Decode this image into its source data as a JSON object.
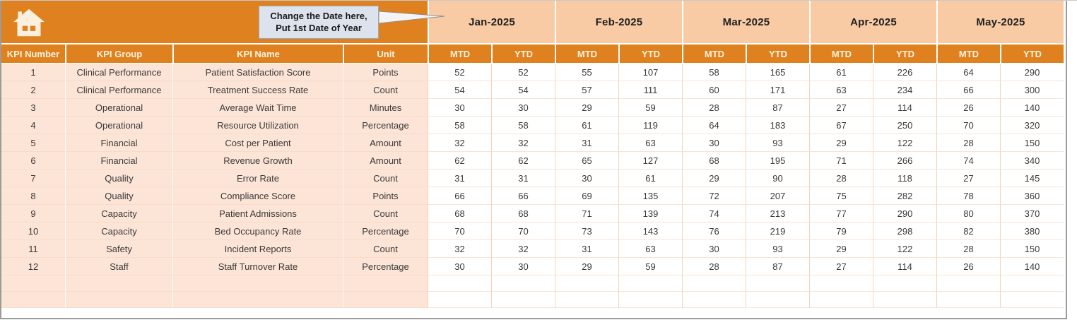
{
  "banner": {
    "callout": {
      "line1": "Change the Date here,",
      "line2": "Put 1st Date of Year"
    }
  },
  "months": [
    "Jan-2025",
    "Feb-2025",
    "Mar-2025",
    "Apr-2025",
    "May-2025"
  ],
  "subheaders": [
    "MTD",
    "YTD"
  ],
  "columns": [
    "KPI Number",
    "KPI Group",
    "KPI Name",
    "Unit"
  ],
  "rows": [
    {
      "number": "1",
      "group": "Clinical Performance",
      "name": "Patient Satisfaction Score",
      "unit": "Points",
      "values": [
        52,
        52,
        55,
        107,
        58,
        165,
        61,
        226,
        64,
        290
      ]
    },
    {
      "number": "2",
      "group": "Clinical Performance",
      "name": "Treatment Success Rate",
      "unit": "Count",
      "values": [
        54,
        54,
        57,
        111,
        60,
        171,
        63,
        234,
        66,
        300
      ]
    },
    {
      "number": "3",
      "group": "Operational",
      "name": "Average Wait Time",
      "unit": "Minutes",
      "values": [
        30,
        30,
        29,
        59,
        28,
        87,
        27,
        114,
        26,
        140
      ]
    },
    {
      "number": "4",
      "group": "Operational",
      "name": "Resource Utilization",
      "unit": "Percentage",
      "values": [
        58,
        58,
        61,
        119,
        64,
        183,
        67,
        250,
        70,
        320
      ]
    },
    {
      "number": "5",
      "group": "Financial",
      "name": "Cost per Patient",
      "unit": "Amount",
      "values": [
        32,
        32,
        31,
        63,
        30,
        93,
        29,
        122,
        28,
        150
      ]
    },
    {
      "number": "6",
      "group": "Financial",
      "name": "Revenue Growth",
      "unit": "Amount",
      "values": [
        62,
        62,
        65,
        127,
        68,
        195,
        71,
        266,
        74,
        340
      ]
    },
    {
      "number": "7",
      "group": "Quality",
      "name": "Error Rate",
      "unit": "Count",
      "values": [
        31,
        31,
        30,
        61,
        29,
        90,
        28,
        118,
        27,
        145
      ]
    },
    {
      "number": "8",
      "group": "Quality",
      "name": "Compliance Score",
      "unit": "Points",
      "values": [
        66,
        66,
        69,
        135,
        72,
        207,
        75,
        282,
        78,
        360
      ]
    },
    {
      "number": "9",
      "group": "Capacity",
      "name": "Patient Admissions",
      "unit": "Count",
      "values": [
        68,
        68,
        71,
        139,
        74,
        213,
        77,
        290,
        80,
        370
      ]
    },
    {
      "number": "10",
      "group": "Capacity",
      "name": "Bed Occupancy Rate",
      "unit": "Percentage",
      "values": [
        70,
        70,
        73,
        143,
        76,
        219,
        79,
        298,
        82,
        380
      ]
    },
    {
      "number": "11",
      "group": "Safety",
      "name": "Incident Reports",
      "unit": "Count",
      "values": [
        32,
        32,
        31,
        63,
        30,
        93,
        29,
        122,
        28,
        150
      ]
    },
    {
      "number": "12",
      "group": "Staff",
      "name": "Staff Turnover Rate",
      "unit": "Percentage",
      "values": [
        30,
        30,
        29,
        59,
        28,
        87,
        27,
        114,
        26,
        140
      ]
    }
  ],
  "empty_row_count": 2,
  "colors": {
    "accent_orange": "#DE811E",
    "month_peach": "#F8CBA4",
    "info_pink": "#FCE4D6",
    "callout_bg": "#DDE3EC",
    "callout_border": "#9FA5B0",
    "header_text": "#FCF3E2",
    "body_text": "#3A3A3A",
    "sheet_border": "#9B9B9B"
  }
}
